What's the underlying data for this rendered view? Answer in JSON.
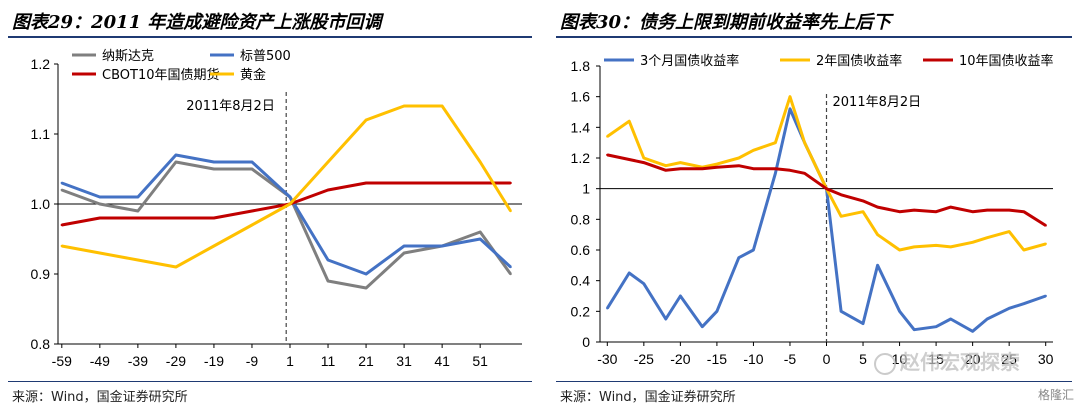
{
  "chart_data": [
    {
      "type": "line",
      "title": "图表29：2011 年造成避险资产上涨股市回调",
      "source": "来源：Wind，国金证券研究所",
      "x": [
        -59,
        -49,
        -39,
        -29,
        -19,
        -9,
        1,
        11,
        21,
        31,
        41,
        51,
        59
      ],
      "xticks": [
        -59,
        -49,
        -39,
        -29,
        -19,
        -9,
        1,
        11,
        21,
        31,
        41,
        51
      ],
      "xtick_labels": [
        "-59",
        "-49",
        "-39",
        "-29",
        "-19",
        "-9",
        "1",
        "11",
        "21",
        "31",
        "41",
        "51"
      ],
      "xlim": [
        -60,
        62
      ],
      "ylim": [
        0.8,
        1.2
      ],
      "yticks": [
        0.8,
        0.9,
        1.0,
        1.1,
        1.2
      ],
      "ytick_labels": [
        "0.8",
        "0.9",
        "1.0",
        "1.1",
        "1.2"
      ],
      "reference_y": 1.0,
      "event_x": 0,
      "annotation": "2011年8月2日",
      "series": [
        {
          "name": "纳斯达克",
          "color": "#7f7f7f",
          "values": [
            1.02,
            1.0,
            0.99,
            1.06,
            1.05,
            1.05,
            1.01,
            0.89,
            0.88,
            0.93,
            0.94,
            0.96,
            0.9
          ]
        },
        {
          "name": "标普500",
          "color": "#4472c4",
          "values": [
            1.03,
            1.01,
            1.01,
            1.07,
            1.06,
            1.06,
            1.01,
            0.92,
            0.9,
            0.94,
            0.94,
            0.95,
            0.91
          ]
        },
        {
          "name": "CBOT10年国债期货",
          "color": "#c00000",
          "values": [
            0.97,
            0.98,
            0.98,
            0.98,
            0.98,
            0.99,
            1.0,
            1.02,
            1.03,
            1.03,
            1.03,
            1.03,
            1.03
          ]
        },
        {
          "name": "黄金",
          "color": "#ffc000",
          "values": [
            0.94,
            0.93,
            0.92,
            0.91,
            0.94,
            0.97,
            1.0,
            1.06,
            1.12,
            1.14,
            1.14,
            1.06,
            0.99
          ]
        }
      ]
    },
    {
      "type": "line",
      "title": "图表30：债务上限到期前收益率先上后下",
      "source": "来源：Wind，国金证券研究所",
      "x": [
        -30,
        -27,
        -25,
        -22,
        -20,
        -17,
        -15,
        -12,
        -10,
        -7,
        -5,
        -3,
        0,
        2,
        5,
        7,
        10,
        12,
        15,
        17,
        20,
        22,
        25,
        27,
        30
      ],
      "xticks": [
        -30,
        -25,
        -20,
        -15,
        -10,
        -5,
        0,
        5,
        10,
        15,
        20,
        25,
        30
      ],
      "xtick_labels": [
        "-30",
        "-25",
        "-20",
        "-15",
        "-10",
        "-5",
        "0",
        "5",
        "10",
        "15",
        "20",
        "25",
        "30"
      ],
      "xlim": [
        -31,
        31
      ],
      "ylim": [
        0,
        1.8
      ],
      "yticks": [
        0,
        0.2,
        0.4,
        0.6,
        0.8,
        1,
        1.2,
        1.4,
        1.6,
        1.8
      ],
      "ytick_labels": [
        "0",
        "0.2",
        "0.4",
        "0.6",
        "0.8",
        "1",
        "1.2",
        "1.4",
        "1.6",
        "1.8"
      ],
      "reference_y": 1.0,
      "event_x": 0,
      "annotation": "2011年8月2日",
      "series": [
        {
          "name": "3个月国债收益率",
          "color": "#4472c4",
          "values": [
            0.22,
            0.45,
            0.38,
            0.15,
            0.3,
            0.1,
            0.2,
            0.55,
            0.6,
            1.1,
            1.52,
            1.3,
            1.0,
            0.2,
            0.12,
            0.5,
            0.2,
            0.08,
            0.1,
            0.15,
            0.07,
            0.15,
            0.22,
            0.25,
            0.3
          ]
        },
        {
          "name": "2年国债收益率",
          "color": "#ffc000",
          "values": [
            1.34,
            1.44,
            1.2,
            1.15,
            1.17,
            1.14,
            1.16,
            1.2,
            1.25,
            1.3,
            1.6,
            1.3,
            1.0,
            0.82,
            0.85,
            0.7,
            0.6,
            0.62,
            0.63,
            0.62,
            0.65,
            0.68,
            0.72,
            0.6,
            0.64
          ]
        },
        {
          "name": "10年国债收益率",
          "color": "#c00000",
          "values": [
            1.22,
            1.19,
            1.17,
            1.12,
            1.13,
            1.13,
            1.14,
            1.15,
            1.13,
            1.13,
            1.12,
            1.1,
            1.0,
            0.96,
            0.92,
            0.88,
            0.85,
            0.86,
            0.85,
            0.88,
            0.85,
            0.86,
            0.86,
            0.85,
            0.76
          ]
        }
      ]
    }
  ],
  "watermark": "赵伟宏观探索",
  "logo": "格隆汇"
}
